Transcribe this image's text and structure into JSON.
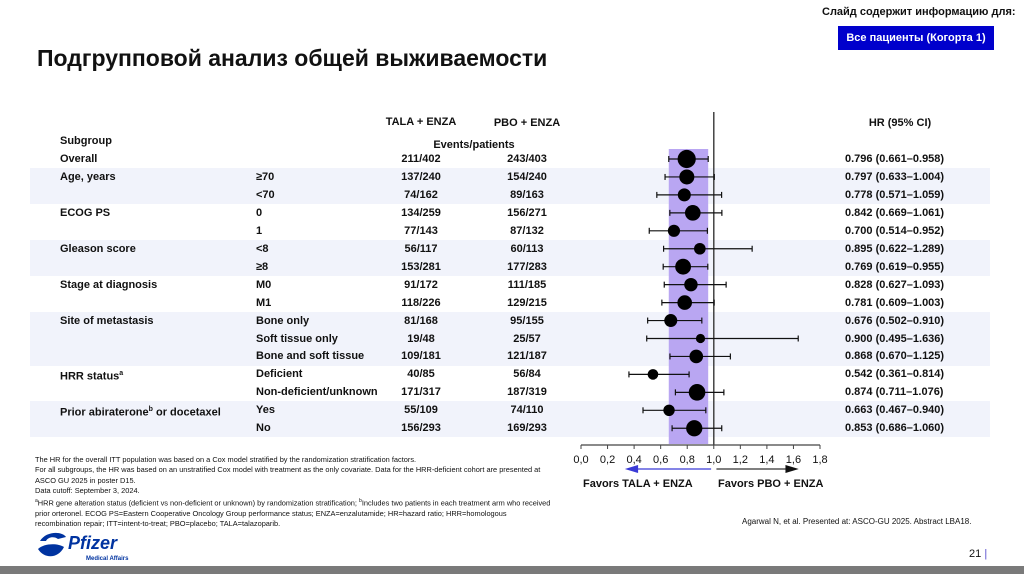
{
  "header": {
    "notice": "Слайд содержит информацию для:",
    "cohort_badge": "Все пациенты (Когорта 1)",
    "title": "Подгрупповой анализ общей выживаемости"
  },
  "table": {
    "col_subgroup": "Subgroup",
    "col_tala": "TALA + ENZA",
    "col_pbo": "PBO + ENZA",
    "col_events": "Events/patients",
    "col_hr": "HR (95% CI)",
    "rows": [
      {
        "group": "Overall",
        "level": "",
        "tala": "211/402",
        "pbo": "243/403",
        "hr_text": "0.796 (0.661–0.958)"
      },
      {
        "group": "Age, years",
        "level": "≥70",
        "tala": "137/240",
        "pbo": "154/240",
        "hr_text": "0.797 (0.633–1.004)"
      },
      {
        "group": "",
        "level": "<70",
        "tala": "74/162",
        "pbo": "89/163",
        "hr_text": "0.778 (0.571–1.059)"
      },
      {
        "group": "ECOG PS",
        "level": "0",
        "tala": "134/259",
        "pbo": "156/271",
        "hr_text": "0.842 (0.669–1.061)"
      },
      {
        "group": "",
        "level": "1",
        "tala": "77/143",
        "pbo": "87/132",
        "hr_text": "0.700 (0.514–0.952)"
      },
      {
        "group": "Gleason score",
        "level": "<8",
        "tala": "56/117",
        "pbo": "60/113",
        "hr_text": "0.895 (0.622–1.289)"
      },
      {
        "group": "",
        "level": "≥8",
        "tala": "153/281",
        "pbo": "177/283",
        "hr_text": "0.769 (0.619–0.955)"
      },
      {
        "group": "Stage at diagnosis",
        "level": "M0",
        "tala": "91/172",
        "pbo": "111/185",
        "hr_text": "0.828 (0.627–1.093)"
      },
      {
        "group": "",
        "level": "M1",
        "tala": "118/226",
        "pbo": "129/215",
        "hr_text": "0.781 (0.609–1.003)"
      },
      {
        "group": "Site of metastasis",
        "level": "Bone only",
        "tala": "81/168",
        "pbo": "95/155",
        "hr_text": "0.676 (0.502–0.910)"
      },
      {
        "group": "",
        "level": "Soft tissue only",
        "tala": "19/48",
        "pbo": "25/57",
        "hr_text": "0.900 (0.495–1.636)"
      },
      {
        "group": "",
        "level": "Bone and soft tissue",
        "tala": "109/181",
        "pbo": "121/187",
        "hr_text": "0.868 (0.670–1.125)"
      },
      {
        "group": "HRR status",
        "group_sup": "a",
        "level": "Deficient",
        "tala": "40/85",
        "pbo": "56/84",
        "hr_text": "0.542 (0.361–0.814)"
      },
      {
        "group": "",
        "level": "Non-deficient/unknown",
        "tala": "171/317",
        "pbo": "187/319",
        "hr_text": "0.874 (0.711–1.076)"
      },
      {
        "group": "Prior abiraterone",
        "group_sup": "b",
        "group_tail": " or docetaxel",
        "level": "Yes",
        "tala": "55/109",
        "pbo": "74/110",
        "hr_text": "0.663 (0.467–0.940)"
      },
      {
        "group": "",
        "level": "No",
        "tala": "156/293",
        "pbo": "169/293",
        "hr_text": "0.853 (0.686–1.060)"
      }
    ]
  },
  "chart_data": {
    "type": "forest",
    "xlim": [
      0,
      1.8
    ],
    "ticks": [
      "0,0",
      "0,2",
      "0,4",
      "0,6",
      "0,8",
      "1,0",
      "1,2",
      "1,4",
      "1,6",
      "1,8"
    ],
    "tick_values": [
      0,
      0.2,
      0.4,
      0.6,
      0.8,
      1.0,
      1.2,
      1.4,
      1.6,
      1.8
    ],
    "reference_line": 1.0,
    "overall_ci_band": [
      0.661,
      0.958
    ],
    "band_color": "#b9a6f2",
    "left_arrow_color": "#3a3ad6",
    "favors_left": "Favors TALA + ENZA",
    "favors_right": "Favors PBO + ENZA",
    "points": [
      {
        "hr": 0.796,
        "lo": 0.661,
        "hi": 0.958,
        "n": 805
      },
      {
        "hr": 0.797,
        "lo": 0.633,
        "hi": 1.004,
        "n": 480
      },
      {
        "hr": 0.778,
        "lo": 0.571,
        "hi": 1.059,
        "n": 325
      },
      {
        "hr": 0.842,
        "lo": 0.669,
        "hi": 1.061,
        "n": 530
      },
      {
        "hr": 0.7,
        "lo": 0.514,
        "hi": 0.952,
        "n": 275
      },
      {
        "hr": 0.895,
        "lo": 0.622,
        "hi": 1.289,
        "n": 230
      },
      {
        "hr": 0.769,
        "lo": 0.619,
        "hi": 0.955,
        "n": 564
      },
      {
        "hr": 0.828,
        "lo": 0.627,
        "hi": 1.093,
        "n": 357
      },
      {
        "hr": 0.781,
        "lo": 0.609,
        "hi": 1.003,
        "n": 441
      },
      {
        "hr": 0.676,
        "lo": 0.502,
        "hi": 0.91,
        "n": 323
      },
      {
        "hr": 0.9,
        "lo": 0.495,
        "hi": 1.636,
        "n": 105
      },
      {
        "hr": 0.868,
        "lo": 0.67,
        "hi": 1.125,
        "n": 368
      },
      {
        "hr": 0.542,
        "lo": 0.361,
        "hi": 0.814,
        "n": 169
      },
      {
        "hr": 0.874,
        "lo": 0.711,
        "hi": 1.076,
        "n": 636
      },
      {
        "hr": 0.663,
        "lo": 0.467,
        "hi": 0.94,
        "n": 219
      },
      {
        "hr": 0.853,
        "lo": 0.686,
        "hi": 1.06,
        "n": 586
      }
    ]
  },
  "footnotes": {
    "line1": "The HR for the overall ITT population was based on a Cox model stratified by the randomization stratification factors.",
    "line2": "For all subgroups, the HR was based on an unstratified Cox model with treatment as the only covariate. Data for the HRR-deficient cohort are presented at ASCO GU 2025 in poster D15.",
    "line3": "Data cutoff: September 3, 2024.",
    "sup_a": "a",
    "line4a": "HRR gene alteration status (deficient vs non-deficient or unknown) by randomization stratification; ",
    "sup_b": "b",
    "line4b": "Includes two patients in each treatment arm who received prior orteronel. ECOG PS=Eastern Cooperative Oncology Group performance status; ENZA=enzalutamide; HR=hazard ratio; HRR=homologous recombination repair; ITT=intent-to-treat; PBO=placebo; TALA=talazoparib."
  },
  "reference": "Agarwal N, et al. Presented at: ASCO-GU 2025. Abstract LBA18.",
  "page_number": "21",
  "logo": {
    "brand": "Pfizer",
    "sub": "Medical Affairs",
    "color": "#0033a0"
  }
}
